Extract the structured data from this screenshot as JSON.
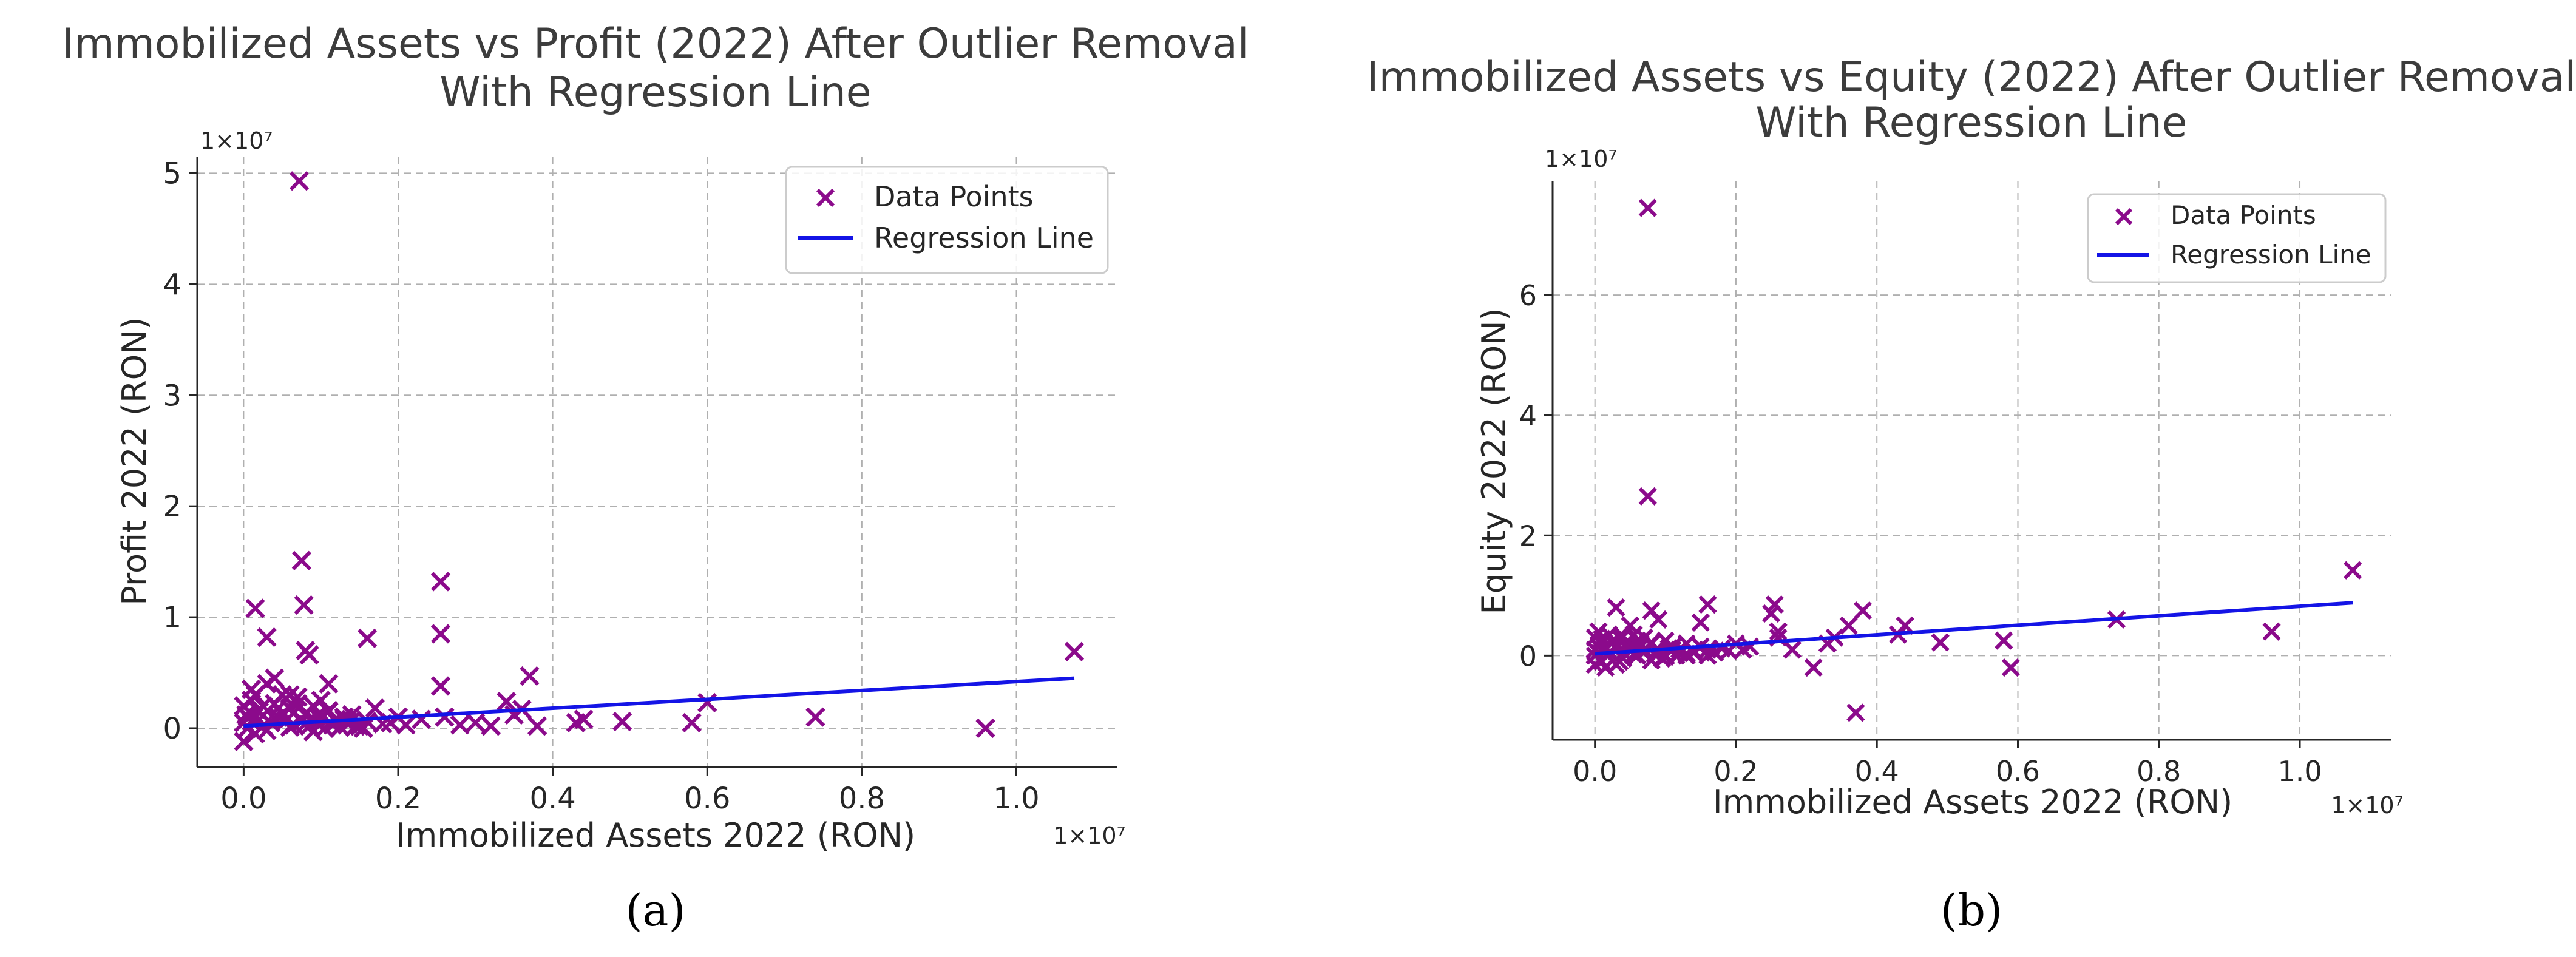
{
  "chart_data": [
    {
      "type": "scatter",
      "panel": "a",
      "caption": "(a)",
      "title_line1": "Immobilized Assets vs Profit (2022) After Outlier Removal",
      "title_line2": "With Regression Line",
      "xlabel": "Immobilized Assets 2022 (RON)",
      "ylabel": "Profit 2022 (RON)",
      "x_multiplier_label": "1×10⁷",
      "y_multiplier_label": "1×10⁷",
      "xlim": [
        -0.06,
        1.13
      ],
      "ylim": [
        -0.35,
        5.15
      ],
      "xticks": [
        0.0,
        0.2,
        0.4,
        0.6,
        0.8,
        1.0
      ],
      "xtick_labels": [
        "0.0",
        "0.2",
        "0.4",
        "0.6",
        "0.8",
        "1.0"
      ],
      "yticks": [
        0,
        1,
        2,
        3,
        4,
        5
      ],
      "ytick_labels": [
        "0",
        "1",
        "2",
        "3",
        "4",
        "5"
      ],
      "grid": true,
      "legend_position": "top-right",
      "legend": {
        "points": "Data Points",
        "line": "Regression Line"
      },
      "marker_color": "#8b0a8b",
      "line_color": "#1414e6",
      "regression": {
        "x": [
          0.0,
          1.075
        ],
        "y": [
          0.02,
          0.45
        ]
      },
      "series": [
        {
          "name": "Data Points",
          "x": [
            0.072,
            0.075,
            0.015,
            0.078,
            0.255,
            0.255,
            0.03,
            0.16,
            0.08,
            0.085,
            0.255,
            0.37,
            0.11,
            1.075,
            0.6,
            0.74,
            0.96,
            0.34,
            0.36,
            0.44,
            0.49,
            0.58,
            0.26,
            0.28,
            0.3,
            0.32,
            0.35,
            0.38,
            0.43,
            0.2,
            0.19,
            0.15,
            0.13,
            0.06,
            0.04,
            0.025,
            0.01,
            0.005,
            0.0,
            0.0,
            0.01,
            0.02,
            0.03,
            0.04,
            0.05,
            0.06,
            0.07,
            0.08,
            0.09,
            0.1,
            0.11,
            0.12,
            0.14,
            0.16,
            0.17,
            0.18,
            0.21,
            0.23,
            0.005,
            0.015,
            0.025,
            0.035,
            0.045,
            0.055,
            0.065,
            0.075,
            0.085,
            0.095,
            0.105,
            0.115,
            0.125,
            0.135,
            0.145,
            0.155,
            0.0,
            0.02,
            0.05,
            0.08,
            0.1,
            0.13,
            0.03,
            0.06,
            0.09,
            0.12,
            0.015,
            0.045,
            0.07,
            0.11,
            0.003,
            0.01,
            0.04,
            0.065,
            0.095,
            0.14
          ],
          "y": [
            4.93,
            1.51,
            1.08,
            1.11,
            1.32,
            0.85,
            0.82,
            0.81,
            0.7,
            0.66,
            0.38,
            0.47,
            0.4,
            0.69,
            0.23,
            0.1,
            0.0,
            0.24,
            0.17,
            0.08,
            0.06,
            0.05,
            0.1,
            0.03,
            0.05,
            0.02,
            0.12,
            0.02,
            0.05,
            0.1,
            0.05,
            0.02,
            0.08,
            0.3,
            0.45,
            0.2,
            0.35,
            0.1,
            -0.12,
            0.05,
            0.25,
            0.15,
            0.4,
            0.22,
            0.3,
            0.18,
            0.28,
            0.12,
            0.2,
            0.1,
            0.15,
            0.08,
            0.12,
            0.06,
            0.18,
            0.04,
            0.03,
            0.08,
            0.0,
            -0.05,
            0.02,
            0.05,
            0.1,
            0.07,
            0.03,
            0.06,
            0.02,
            0.05,
            0.0,
            0.03,
            0.01,
            0.04,
            0.02,
            0.0,
            0.2,
            0.08,
            0.13,
            0.04,
            0.25,
            0.1,
            -0.02,
            0.01,
            -0.03,
            0.06,
            0.3,
            0.18,
            0.22,
            0.16,
            0.12,
            0.06,
            0.09,
            0.14,
            0.11,
            0.07
          ]
        }
      ]
    },
    {
      "type": "scatter",
      "panel": "b",
      "caption": "(b)",
      "title_line1": "Immobilized Assets vs Equity (2022) After Outlier Removal",
      "title_line2": "With Regression Line",
      "xlabel": "Immobilized Assets 2022 (RON)",
      "ylabel": "Equity 2022 (RON)",
      "x_multiplier_label": "1×10⁷",
      "y_multiplier_label": "1×10⁷",
      "xlim": [
        -0.06,
        1.13
      ],
      "ylim": [
        -1.4,
        7.9
      ],
      "xticks": [
        0.0,
        0.2,
        0.4,
        0.6,
        0.8,
        1.0
      ],
      "xtick_labels": [
        "0.0",
        "0.2",
        "0.4",
        "0.6",
        "0.8",
        "1.0"
      ],
      "yticks": [
        0,
        2,
        4,
        6
      ],
      "ytick_labels": [
        "0",
        "2",
        "4",
        "6"
      ],
      "grid": true,
      "legend_position": "top-right",
      "legend": {
        "points": "Data Points",
        "line": "Regression Line"
      },
      "marker_color": "#8b0a8b",
      "line_color": "#1414e6",
      "regression": {
        "x": [
          0.0,
          1.075
        ],
        "y": [
          0.03,
          0.88
        ]
      },
      "series": [
        {
          "name": "Data Points",
          "x": [
            0.075,
            0.075,
            1.075,
            0.96,
            0.74,
            0.58,
            0.59,
            0.49,
            0.44,
            0.43,
            0.37,
            0.38,
            0.36,
            0.34,
            0.33,
            0.31,
            0.28,
            0.26,
            0.255,
            0.25,
            0.26,
            0.16,
            0.15,
            0.08,
            0.09,
            0.03,
            0.05,
            0.2,
            0.22,
            0.0,
            0.0,
            0.005,
            0.01,
            0.015,
            0.02,
            0.025,
            0.03,
            0.035,
            0.04,
            0.045,
            0.05,
            0.055,
            0.06,
            0.065,
            0.07,
            0.08,
            0.09,
            0.1,
            0.11,
            0.12,
            0.13,
            0.14,
            0.15,
            0.16,
            0.17,
            0.18,
            0.19,
            0.21,
            0.0,
            0.01,
            0.02,
            0.03,
            0.04,
            0.05,
            0.06,
            0.07,
            0.08,
            0.09,
            0.1,
            0.11,
            0.12,
            0.13,
            0.14,
            0.005,
            0.015,
            0.025,
            0.035,
            0.045,
            0.055,
            0.065,
            0.085,
            0.095,
            0.105,
            0.115,
            0.01,
            0.03,
            0.05,
            0.07,
            0.1,
            0.13,
            0.16,
            0.0,
            0.04,
            0.08
          ],
          "y": [
            7.45,
            2.65,
            1.42,
            0.4,
            0.6,
            0.25,
            -0.2,
            0.22,
            0.5,
            0.35,
            -0.95,
            0.75,
            0.5,
            0.3,
            0.2,
            -0.2,
            0.1,
            0.3,
            0.85,
            0.7,
            0.4,
            0.85,
            0.55,
            0.75,
            0.6,
            0.8,
            0.5,
            0.2,
            0.15,
            0.3,
            -0.15,
            0.4,
            0.2,
            0.1,
            0.35,
            0.25,
            0.15,
            0.3,
            0.05,
            0.2,
            0.1,
            0.35,
            0.25,
            0.15,
            0.3,
            0.2,
            0.1,
            0.25,
            0.15,
            0.1,
            0.2,
            0.05,
            0.15,
            0.1,
            0.05,
            0.12,
            0.08,
            0.1,
            0.0,
            -0.1,
            0.05,
            0.12,
            -0.05,
            0.08,
            0.0,
            0.1,
            -0.08,
            0.05,
            0.0,
            0.1,
            0.04,
            0.0,
            0.08,
            0.15,
            -0.2,
            0.22,
            -0.1,
            0.18,
            0.02,
            0.2,
            0.02,
            -0.05,
            0.12,
            0.0,
            0.28,
            -0.15,
            0.16,
            0.06,
            -0.02,
            0.03,
            0.0,
            0.1,
            0.32,
            0.22
          ]
        }
      ]
    }
  ]
}
